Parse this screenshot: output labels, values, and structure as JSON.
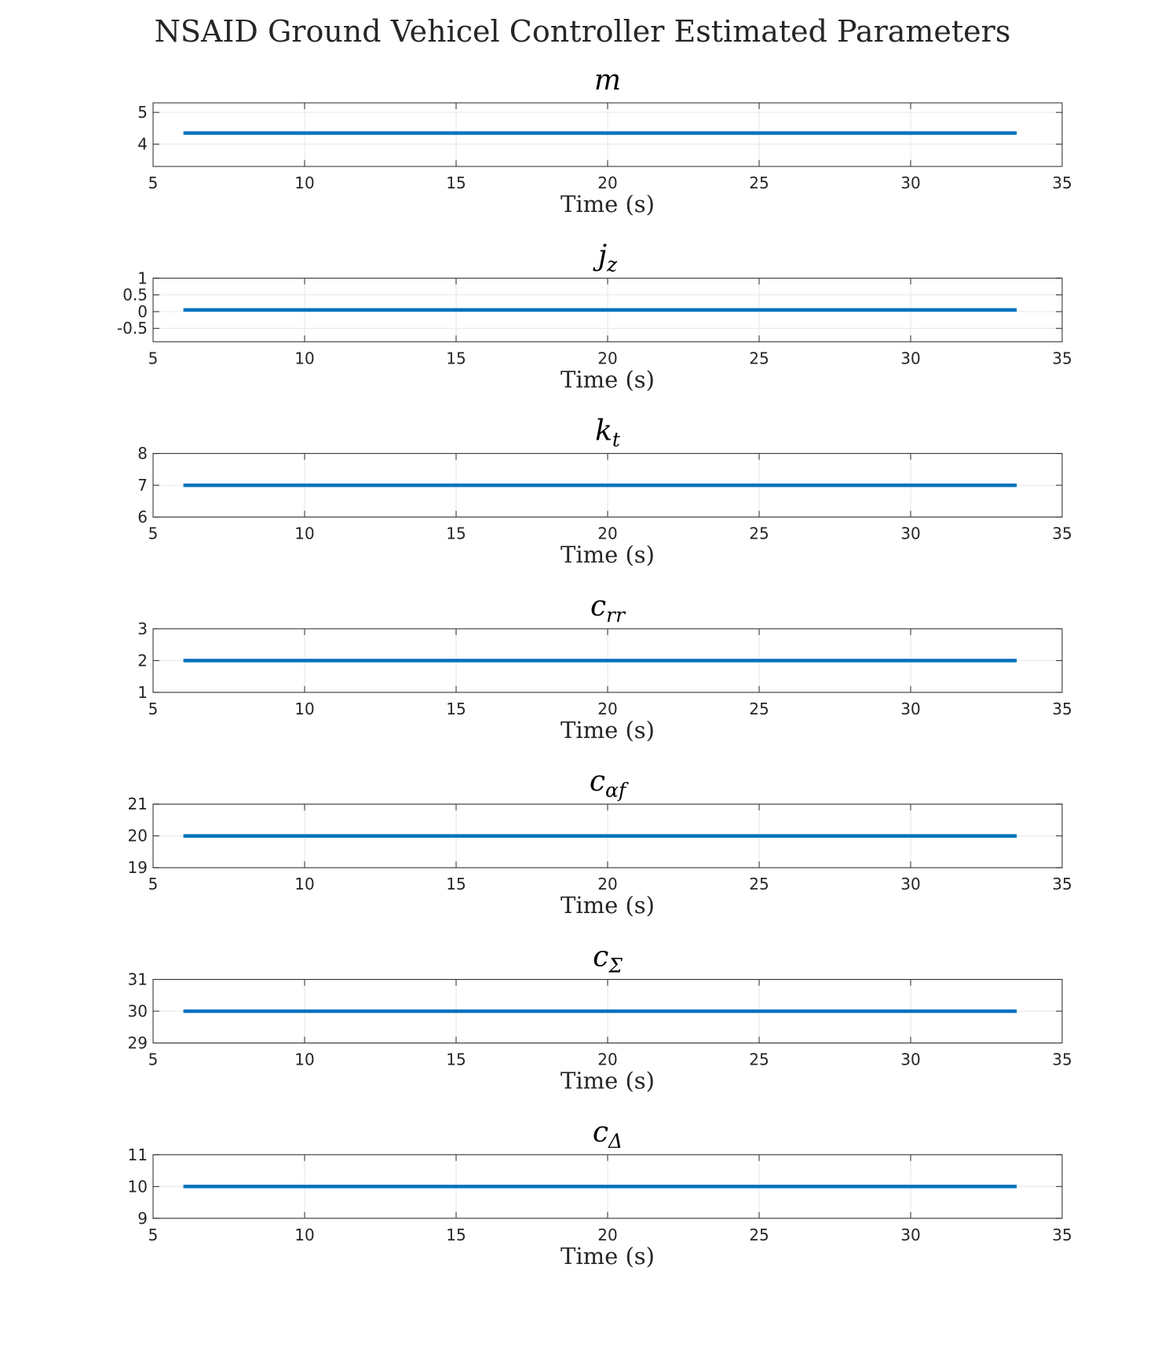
{
  "title": "NSAID Ground Vehicel Controller Estimated Parameters",
  "colors": {
    "series": "#0072BD",
    "axes": "#262626",
    "grid": "#e6e6e6"
  },
  "chart_data": [
    {
      "type": "line",
      "title": {
        "main": "m",
        "sub": ""
      },
      "xlabel": "Time (s)",
      "ylabel": "",
      "xlim": [
        5,
        35
      ],
      "ylim": [
        3.3,
        5.3
      ],
      "xticks": [
        "5",
        "10",
        "15",
        "20",
        "25",
        "30",
        "35"
      ],
      "yticks": [
        "4",
        "5"
      ],
      "grid": true,
      "series": [
        {
          "x": [
            6,
            33.5
          ],
          "y": [
            4.35,
            4.35
          ]
        }
      ]
    },
    {
      "type": "line",
      "title": {
        "main": "j",
        "sub": "z"
      },
      "xlabel": "Time (s)",
      "ylabel": "",
      "xlim": [
        5,
        35
      ],
      "ylim": [
        -0.9,
        1
      ],
      "xticks": [
        "5",
        "10",
        "15",
        "20",
        "25",
        "30",
        "35"
      ],
      "yticks": [
        "-0.5",
        "0",
        "0.5",
        "1"
      ],
      "grid": true,
      "series": [
        {
          "x": [
            6,
            33.5
          ],
          "y": [
            0.05,
            0.05
          ]
        }
      ]
    },
    {
      "type": "line",
      "title": {
        "main": "k",
        "sub": "t"
      },
      "xlabel": "Time (s)",
      "ylabel": "",
      "xlim": [
        5,
        35
      ],
      "ylim": [
        6,
        8
      ],
      "xticks": [
        "5",
        "10",
        "15",
        "20",
        "25",
        "30",
        "35"
      ],
      "yticks": [
        "6",
        "7",
        "8"
      ],
      "grid": true,
      "series": [
        {
          "x": [
            6,
            33.5
          ],
          "y": [
            7,
            7
          ]
        }
      ]
    },
    {
      "type": "line",
      "title": {
        "main": "c",
        "sub": "rr"
      },
      "xlabel": "Time (s)",
      "ylabel": "",
      "xlim": [
        5,
        35
      ],
      "ylim": [
        1,
        3
      ],
      "xticks": [
        "5",
        "10",
        "15",
        "20",
        "25",
        "30",
        "35"
      ],
      "yticks": [
        "1",
        "2",
        "3"
      ],
      "grid": true,
      "series": [
        {
          "x": [
            6,
            33.5
          ],
          "y": [
            2,
            2
          ]
        }
      ]
    },
    {
      "type": "line",
      "title": {
        "main": "c",
        "sub": "αf"
      },
      "xlabel": "Time (s)",
      "ylabel": "",
      "xlim": [
        5,
        35
      ],
      "ylim": [
        19,
        21
      ],
      "xticks": [
        "5",
        "10",
        "15",
        "20",
        "25",
        "30",
        "35"
      ],
      "yticks": [
        "19",
        "20",
        "21"
      ],
      "grid": true,
      "series": [
        {
          "x": [
            6,
            33.5
          ],
          "y": [
            20,
            20
          ]
        }
      ]
    },
    {
      "type": "line",
      "title": {
        "main": "c",
        "sub": "Σ"
      },
      "xlabel": "Time (s)",
      "ylabel": "",
      "xlim": [
        5,
        35
      ],
      "ylim": [
        29,
        31
      ],
      "xticks": [
        "5",
        "10",
        "15",
        "20",
        "25",
        "30",
        "35"
      ],
      "yticks": [
        "29",
        "30",
        "31"
      ],
      "grid": true,
      "series": [
        {
          "x": [
            6,
            33.5
          ],
          "y": [
            30,
            30
          ]
        }
      ]
    },
    {
      "type": "line",
      "title": {
        "main": "c",
        "sub": "Δ"
      },
      "xlabel": "Time (s)",
      "ylabel": "",
      "xlim": [
        5,
        35
      ],
      "ylim": [
        9,
        11
      ],
      "xticks": [
        "5",
        "10",
        "15",
        "20",
        "25",
        "30",
        "35"
      ],
      "yticks": [
        "9",
        "10",
        "11"
      ],
      "grid": true,
      "series": [
        {
          "x": [
            6,
            33.5
          ],
          "y": [
            10,
            10
          ]
        }
      ]
    }
  ]
}
